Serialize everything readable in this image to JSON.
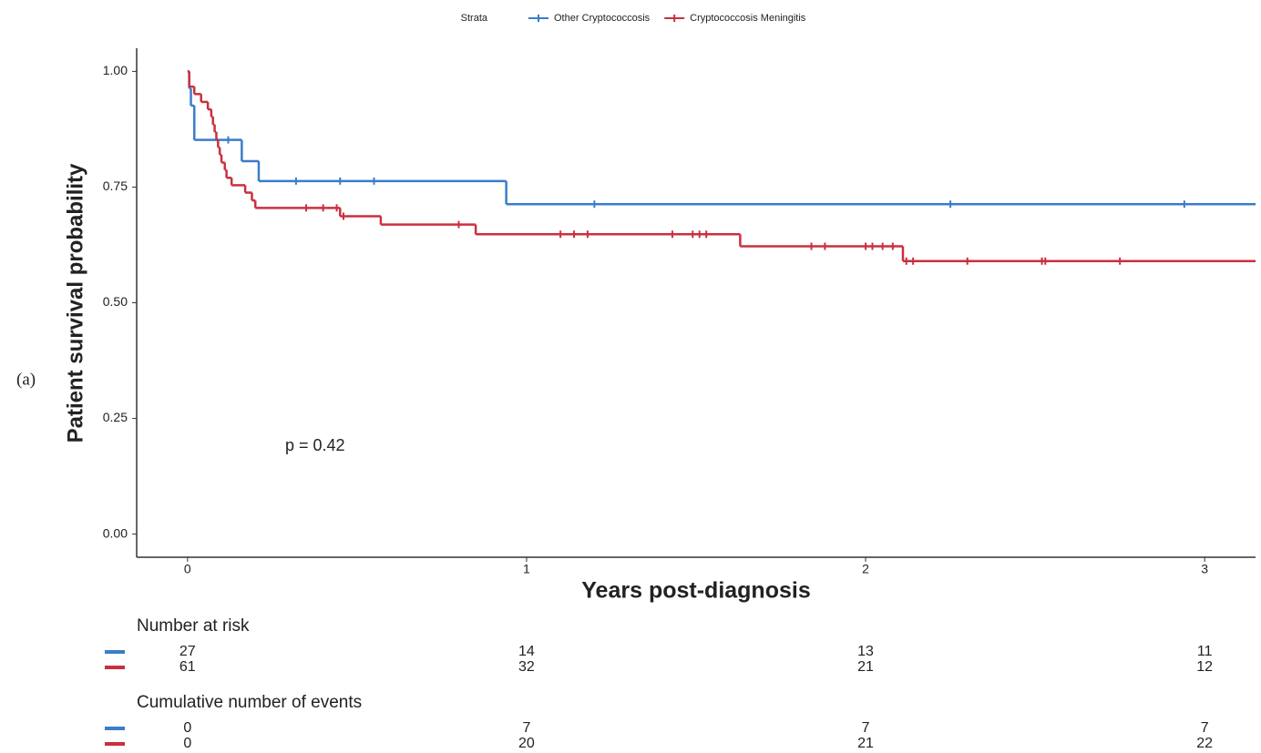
{
  "panel_label": "(a)",
  "chart_data": {
    "type": "km",
    "legend_title": "Strata",
    "xlabel": "Years post-diagnosis",
    "ylabel": "Patient survival probability",
    "annotation": "p = 0.42",
    "xlim": [
      -0.15,
      3.15
    ],
    "ylim": [
      -0.05,
      1.05
    ],
    "xticks": [
      0,
      1,
      2,
      3
    ],
    "yticks": [
      {
        "value": 0,
        "label": "0.00"
      },
      {
        "value": 0.25,
        "label": "0.25"
      },
      {
        "value": 0.5,
        "label": "0.50"
      },
      {
        "value": 0.75,
        "label": "0.75"
      },
      {
        "value": 1,
        "label": "1.00"
      }
    ],
    "series": [
      {
        "name": "Other Cryptococcosis",
        "color": "#3a7dc9",
        "x": [
          0,
          0.005,
          0.01,
          0.02,
          0.16,
          0.21,
          0.94
        ],
        "values": [
          1.0,
          0.963,
          0.926,
          0.852,
          0.806,
          0.763,
          0.713
        ],
        "censor_x": [
          0.12,
          0.32,
          0.45,
          0.55,
          1.2,
          2.25,
          2.94
        ],
        "censor_values": [
          0.852,
          0.763,
          0.763,
          0.763,
          0.713,
          0.713,
          0.713
        ]
      },
      {
        "name": "Cryptococcosis Meningitis",
        "color": "#c9303f",
        "x": [
          0,
          0.005,
          0.02,
          0.04,
          0.06,
          0.07,
          0.075,
          0.08,
          0.085,
          0.09,
          0.095,
          0.1,
          0.11,
          0.115,
          0.13,
          0.17,
          0.19,
          0.2,
          0.45,
          0.57,
          0.85,
          1.63,
          2.11
        ],
        "values": [
          1.0,
          0.967,
          0.951,
          0.934,
          0.918,
          0.902,
          0.885,
          0.869,
          0.852,
          0.836,
          0.82,
          0.803,
          0.787,
          0.77,
          0.754,
          0.738,
          0.721,
          0.705,
          0.687,
          0.669,
          0.648,
          0.622,
          0.59
        ],
        "censor_x": [
          0.35,
          0.4,
          0.44,
          0.46,
          0.8,
          1.1,
          1.14,
          1.18,
          1.43,
          1.49,
          1.51,
          1.53,
          1.84,
          1.88,
          2.0,
          2.02,
          2.05,
          2.08,
          2.12,
          2.14,
          2.3,
          2.52,
          2.53,
          2.75
        ],
        "censor_values": [
          0.705,
          0.705,
          0.705,
          0.687,
          0.669,
          0.648,
          0.648,
          0.648,
          0.648,
          0.648,
          0.648,
          0.648,
          0.622,
          0.622,
          0.622,
          0.622,
          0.622,
          0.622,
          0.59,
          0.59,
          0.59,
          0.59,
          0.59,
          0.59
        ]
      }
    ],
    "risk_tables": [
      {
        "title": "Number at risk",
        "rows": [
          [
            27,
            14,
            13,
            11
          ],
          [
            61,
            32,
            21,
            12
          ]
        ]
      },
      {
        "title": "Cumulative number of events",
        "rows": [
          [
            0,
            7,
            7,
            7
          ],
          [
            0,
            20,
            21,
            22
          ]
        ]
      }
    ]
  }
}
